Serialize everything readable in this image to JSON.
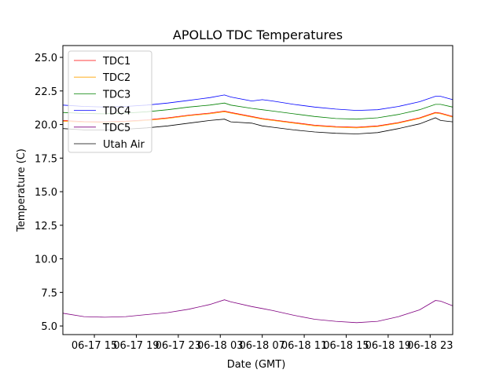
{
  "chart_data": {
    "type": "line",
    "title": "APOLLO TDC Temperatures",
    "xlabel": "Date (GMT)",
    "ylabel": "Temperature (C)",
    "x_unit": "hours since 06-17 00:00 GMT",
    "xlim": [
      12,
      49.15
    ],
    "ylim": [
      4.36,
      25.88
    ],
    "xticks": [
      15,
      19,
      23,
      27,
      31,
      35,
      39,
      43,
      47
    ],
    "xtick_labels": [
      "06-17 15",
      "06-17 19",
      "06-17 23",
      "06-18 03",
      "06-18 07",
      "06-18 11",
      "06-18 15",
      "06-18 19",
      "06-18 23"
    ],
    "yticks": [
      5,
      7.5,
      10,
      12.5,
      15,
      17.5,
      20,
      22.5,
      25
    ],
    "ytick_labels": [
      "5.0",
      "7.5",
      "10.0",
      "12.5",
      "15.0",
      "17.5",
      "20.0",
      "22.5",
      "25.0"
    ],
    "legend_position": "top-left",
    "grid": false,
    "x": [
      12,
      14,
      16,
      18,
      20,
      22,
      24,
      26,
      27.4,
      28,
      30,
      31,
      32,
      34,
      36,
      38,
      40,
      42,
      44,
      46,
      47.5,
      48,
      49.15
    ],
    "series": [
      {
        "name": "TDC1",
        "color": "#ff0000",
        "values": [
          20.3,
          20.22,
          20.2,
          20.25,
          20.35,
          20.5,
          20.7,
          20.85,
          21.0,
          20.9,
          20.6,
          20.45,
          20.35,
          20.15,
          19.95,
          19.85,
          19.8,
          19.9,
          20.15,
          20.5,
          20.9,
          20.85,
          20.6
        ]
      },
      {
        "name": "TDC2",
        "color": "#ffa500",
        "values": [
          20.25,
          20.17,
          20.15,
          20.2,
          20.3,
          20.45,
          20.65,
          20.8,
          20.95,
          20.85,
          20.55,
          20.4,
          20.3,
          20.1,
          19.9,
          19.8,
          19.75,
          19.85,
          20.1,
          20.45,
          20.85,
          20.8,
          20.55
        ]
      },
      {
        "name": "TDC3",
        "color": "#008000",
        "values": [
          20.9,
          20.82,
          20.8,
          20.85,
          20.95,
          21.1,
          21.3,
          21.45,
          21.6,
          21.45,
          21.2,
          21.1,
          21.0,
          20.8,
          20.6,
          20.45,
          20.4,
          20.5,
          20.75,
          21.1,
          21.5,
          21.5,
          21.3
        ]
      },
      {
        "name": "TDC4",
        "color": "#0000ff",
        "values": [
          21.45,
          21.35,
          21.3,
          21.35,
          21.45,
          21.6,
          21.8,
          22.0,
          22.2,
          22.05,
          21.75,
          21.85,
          21.75,
          21.5,
          21.3,
          21.15,
          21.05,
          21.1,
          21.35,
          21.7,
          22.1,
          22.1,
          21.85
        ]
      },
      {
        "name": "TDC5",
        "color": "#800080",
        "values": [
          5.95,
          5.7,
          5.65,
          5.7,
          5.85,
          6.0,
          6.25,
          6.6,
          6.95,
          6.8,
          6.45,
          6.3,
          6.15,
          5.8,
          5.5,
          5.35,
          5.25,
          5.35,
          5.7,
          6.2,
          6.9,
          6.85,
          6.5
        ]
      },
      {
        "name": "Utah Air",
        "color": "#000000",
        "values": [
          19.7,
          19.6,
          19.6,
          19.65,
          19.75,
          19.9,
          20.1,
          20.3,
          20.4,
          20.2,
          20.1,
          19.9,
          19.8,
          19.6,
          19.45,
          19.35,
          19.3,
          19.4,
          19.7,
          20.05,
          20.5,
          20.3,
          20.2
        ]
      }
    ]
  }
}
